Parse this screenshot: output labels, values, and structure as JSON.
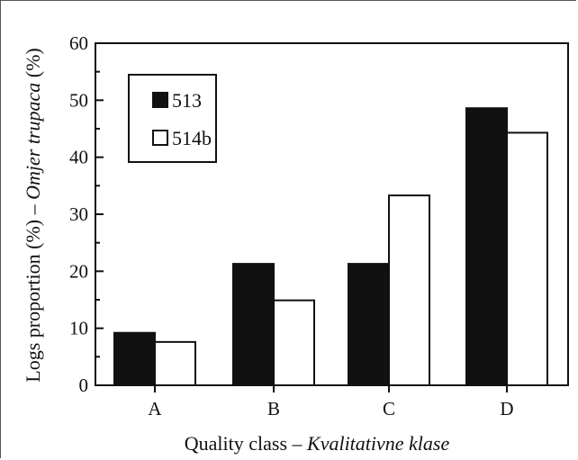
{
  "chart_data": {
    "type": "bar",
    "categories": [
      "A",
      "B",
      "C",
      "D"
    ],
    "series": [
      {
        "name": "513",
        "values": [
          9.2,
          21.3,
          21.3,
          48.6
        ],
        "color": "#111111"
      },
      {
        "name": "514b",
        "values": [
          7.6,
          14.9,
          33.3,
          44.3
        ],
        "color": "#ffffff"
      }
    ],
    "xlabel_plain": "Quality class – ",
    "xlabel_italic": "Kvalitativne klase",
    "ylabel_plain": "Logs proportion (%) – ",
    "ylabel_italic": "Omjer trupaca",
    "ylabel_suffix": " (%)",
    "ylim": [
      0,
      60
    ],
    "yticks": [
      0,
      10,
      20,
      30,
      40,
      50,
      60
    ],
    "grid": false,
    "legend_position": "top-left"
  }
}
